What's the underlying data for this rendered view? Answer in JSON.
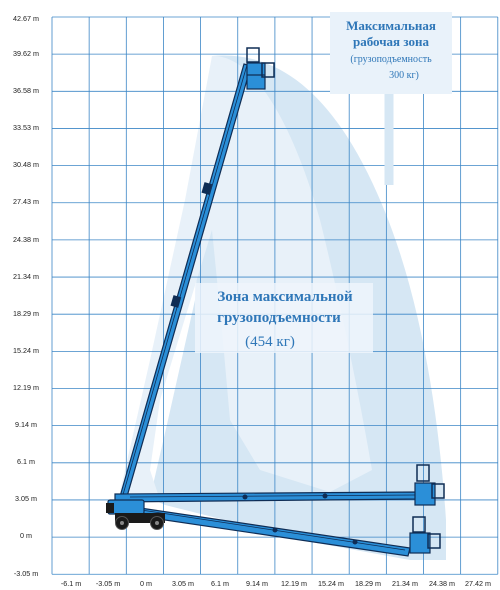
{
  "chart_data": {
    "type": "diagram",
    "y_ticks": [
      "42.67 m",
      "39.62 m",
      "36.58 m",
      "33.53 m",
      "30.48 m",
      "27.43 m",
      "24.38 m",
      "21.34 m",
      "18.29 m",
      "15.24 m",
      "12.19 m",
      "9.14 m",
      "6.1 m",
      "3.05 m",
      "0 m",
      "-3.05 m"
    ],
    "x_ticks": [
      "-6.1 m",
      "-3.05 m",
      "0 m",
      "3.05 m",
      "6.1 m",
      "9.14 m",
      "12.19 m",
      "15.24 m",
      "18.29 m",
      "21.34 m",
      "24.38 m",
      "27.42 m"
    ],
    "grid": true
  },
  "outer_zone": {
    "title_line1": "Максимальная",
    "title_line2": "рабочая зона",
    "sub_line1": "(грузоподъемность",
    "sub_line2": "300 кг)"
  },
  "inner_zone": {
    "title_line1": "Зона максимальной",
    "title_line2": "грузоподъемности",
    "sub_line1": "(454 кг)"
  },
  "colors": {
    "grid": "#3b86c6",
    "outer_zone": "#d6e7f4",
    "inner_zone": "#e8f1f9",
    "boom": "#2b8fd8",
    "boom_dark": "#0f2d55",
    "machine": "#1a1a1a",
    "zone_text": "#2f77b8"
  }
}
